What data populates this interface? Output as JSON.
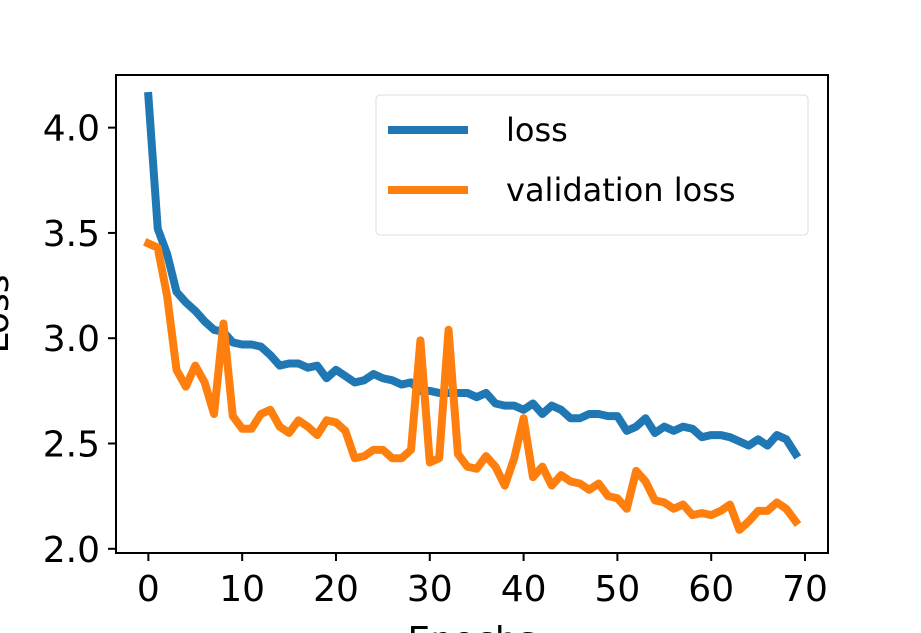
{
  "chart_data": {
    "type": "line",
    "x_label": "Epochs",
    "y_label": "Loss",
    "x": [
      0,
      1,
      2,
      3,
      4,
      5,
      6,
      7,
      8,
      9,
      10,
      11,
      12,
      13,
      14,
      15,
      16,
      17,
      18,
      19,
      20,
      21,
      22,
      23,
      24,
      25,
      26,
      27,
      28,
      29,
      30,
      31,
      32,
      33,
      34,
      35,
      36,
      37,
      38,
      39,
      40,
      41,
      42,
      43,
      44,
      45,
      46,
      47,
      48,
      49,
      50,
      51,
      52,
      53,
      54,
      55,
      56,
      57,
      58,
      59,
      60,
      61,
      62,
      63,
      64,
      65,
      66,
      67,
      68,
      69
    ],
    "series": [
      {
        "name": "loss",
        "color": "#1f77b4",
        "values": [
          4.15,
          3.52,
          3.4,
          3.22,
          3.17,
          3.13,
          3.08,
          3.04,
          3.03,
          2.98,
          2.97,
          2.97,
          2.96,
          2.92,
          2.87,
          2.88,
          2.88,
          2.86,
          2.87,
          2.81,
          2.85,
          2.82,
          2.79,
          2.8,
          2.83,
          2.81,
          2.8,
          2.78,
          2.79,
          2.75,
          2.75,
          2.74,
          2.74,
          2.74,
          2.74,
          2.72,
          2.74,
          2.69,
          2.68,
          2.68,
          2.66,
          2.69,
          2.64,
          2.68,
          2.66,
          2.62,
          2.62,
          2.64,
          2.64,
          2.63,
          2.63,
          2.56,
          2.58,
          2.62,
          2.55,
          2.58,
          2.56,
          2.58,
          2.57,
          2.53,
          2.54,
          2.54,
          2.53,
          2.51,
          2.49,
          2.52,
          2.49,
          2.54,
          2.52,
          2.45
        ]
      },
      {
        "name": "validation loss",
        "color": "#ff7f0e",
        "values": [
          3.45,
          3.43,
          3.2,
          2.85,
          2.77,
          2.87,
          2.79,
          2.64,
          3.07,
          2.63,
          2.57,
          2.57,
          2.64,
          2.66,
          2.58,
          2.55,
          2.61,
          2.58,
          2.54,
          2.61,
          2.6,
          2.56,
          2.43,
          2.44,
          2.47,
          2.47,
          2.43,
          2.43,
          2.47,
          2.99,
          2.41,
          2.43,
          3.04,
          2.45,
          2.39,
          2.38,
          2.44,
          2.39,
          2.3,
          2.43,
          2.62,
          2.34,
          2.39,
          2.3,
          2.35,
          2.32,
          2.31,
          2.28,
          2.31,
          2.25,
          2.24,
          2.19,
          2.37,
          2.32,
          2.23,
          2.22,
          2.19,
          2.21,
          2.16,
          2.17,
          2.16,
          2.18,
          2.21,
          2.09,
          2.13,
          2.18,
          2.18,
          2.22,
          2.19,
          2.13
        ]
      }
    ],
    "xlim": [
      -3.45,
      72.45
    ],
    "xticks": [
      0,
      10,
      20,
      30,
      40,
      50,
      60,
      70
    ],
    "ylim": [
      1.98,
      4.25
    ],
    "yticks": [
      {
        "value": 2,
        "label": "2.0"
      },
      2.5,
      {
        "value": 3,
        "label": "3.0"
      },
      3.5,
      {
        "value": 4,
        "label": "4.0"
      }
    ],
    "grid": false,
    "legend": "upper right"
  }
}
